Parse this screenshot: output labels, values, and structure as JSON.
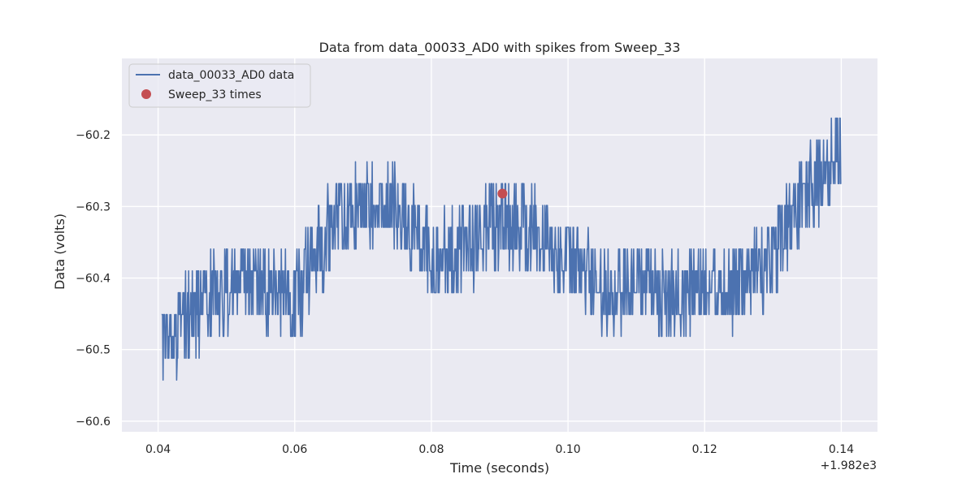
{
  "chart_data": {
    "type": "line",
    "title": "Data from data_00033_AD0 with spikes from Sweep_33",
    "xlabel": "Time (seconds)",
    "ylabel": "Data (volts)",
    "x_offset_label": "+1.982e3",
    "xlim": [
      0.0347,
      0.1453
    ],
    "ylim": [
      -60.6149,
      -60.0931
    ],
    "x_ticks": [
      0.04,
      0.06,
      0.08,
      0.1,
      0.12,
      0.14
    ],
    "x_tick_labels": [
      "0.04",
      "0.06",
      "0.08",
      "0.10",
      "0.12",
      "0.14"
    ],
    "y_ticks": [
      -60.2,
      -60.3,
      -60.4,
      -60.5,
      -60.6
    ],
    "y_tick_labels": [
      "−60.2",
      "−60.3",
      "−60.4",
      "−60.5",
      "−60.6"
    ],
    "grid": true,
    "legend_position": "top-left",
    "colors": {
      "line": "#4c72b0",
      "marker": "#c44e52",
      "background": "#eaeaf2",
      "grid": "#ffffff"
    },
    "series": [
      {
        "name": "data_00033_AD0 data",
        "kind": "line",
        "trend": {
          "x": [
            0.0405,
            0.048,
            0.055,
            0.06,
            0.065,
            0.07,
            0.075,
            0.08,
            0.085,
            0.09,
            0.095,
            0.1,
            0.105,
            0.11,
            0.115,
            0.12,
            0.125,
            0.13,
            0.135,
            0.14
          ],
          "y": [
            -60.495,
            -60.42,
            -60.405,
            -60.43,
            -60.33,
            -60.3,
            -60.3,
            -60.37,
            -60.36,
            -60.32,
            -60.33,
            -60.38,
            -60.41,
            -60.41,
            -60.43,
            -60.41,
            -60.41,
            -60.37,
            -60.28,
            -60.22
          ]
        },
        "noise_amplitude": 0.06,
        "y_min": -60.59,
        "y_max": -60.12
      },
      {
        "name": "Sweep_33 times",
        "kind": "scatter",
        "x": [
          0.0904
        ],
        "y": [
          -60.282
        ]
      }
    ]
  }
}
